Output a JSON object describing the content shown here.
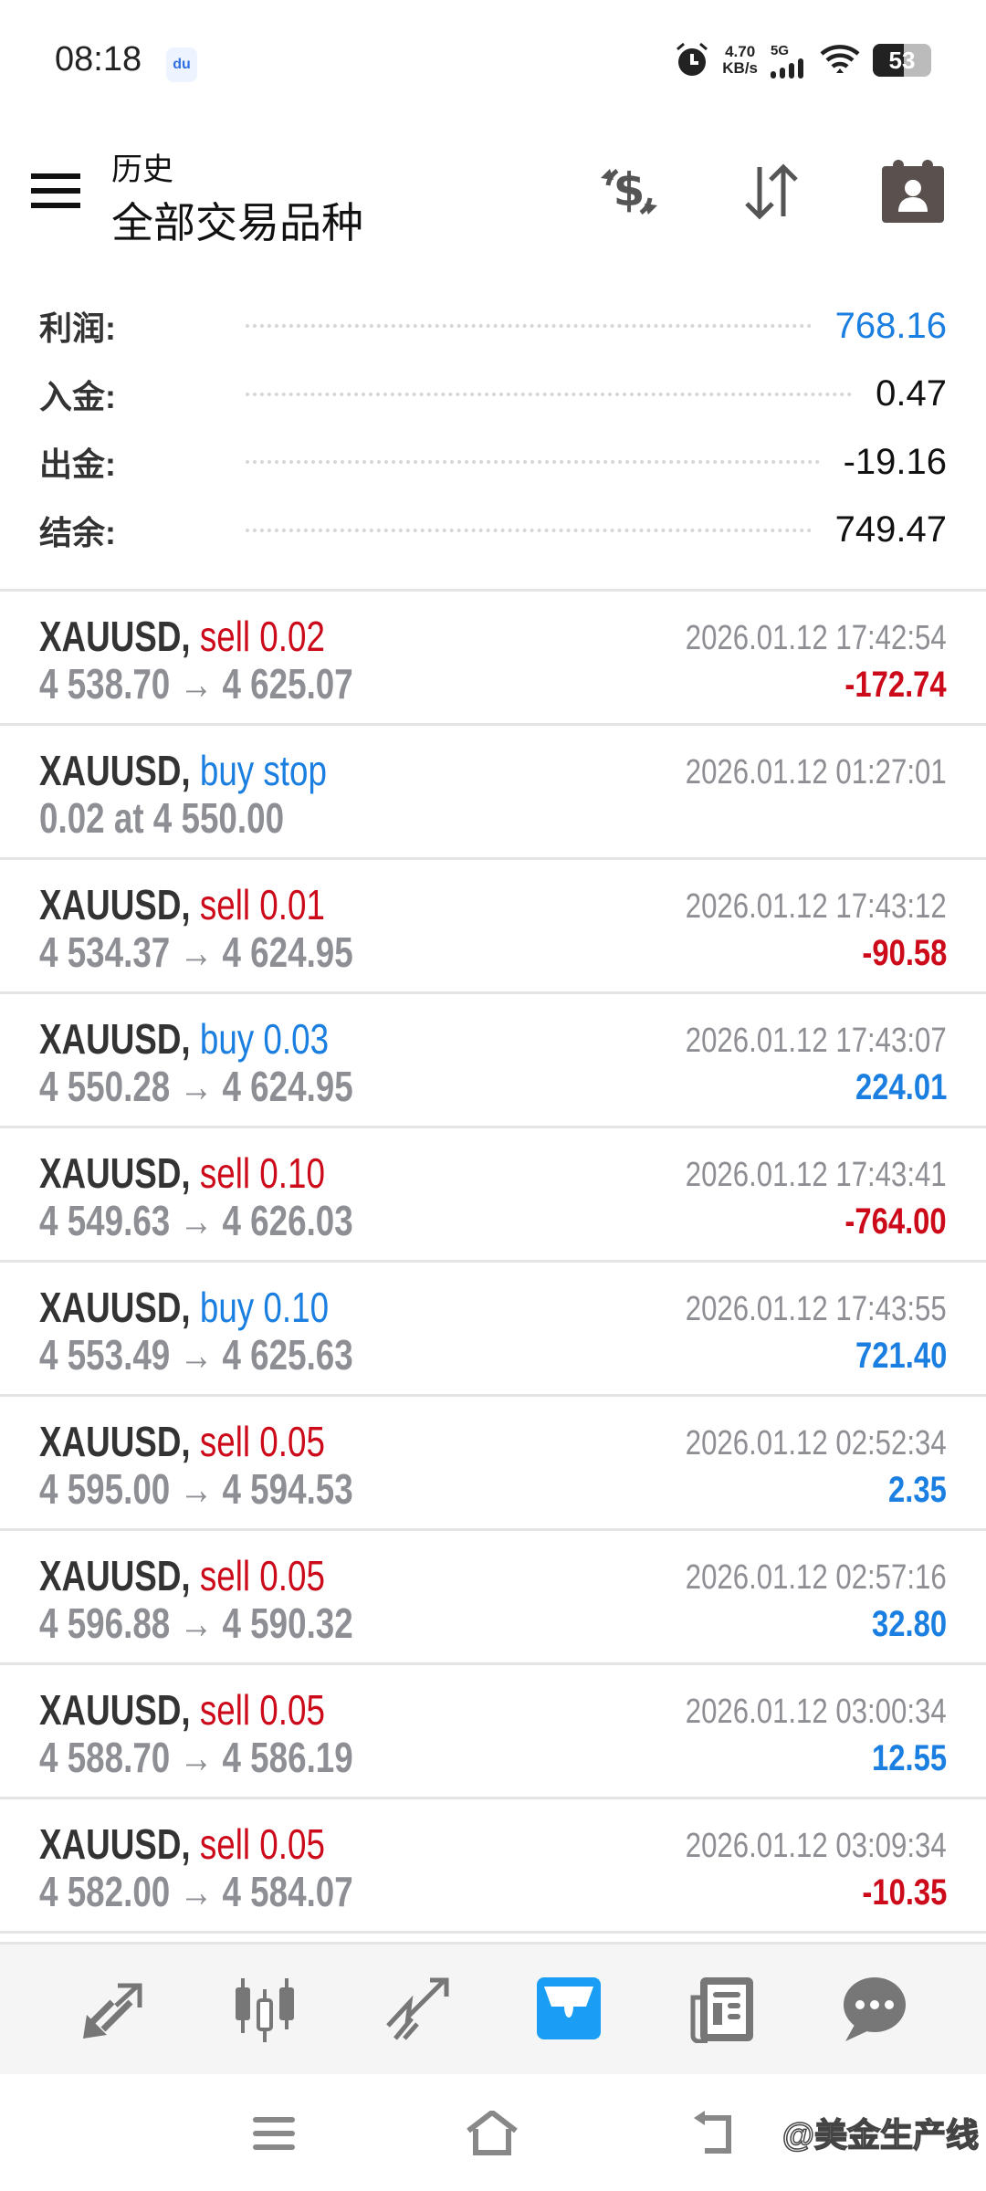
{
  "status_bar": {
    "time": "08:18",
    "app_badge": "du",
    "net_speed": "4.70",
    "net_unit": "KB/s",
    "network": "5G",
    "battery": "53",
    "icons": [
      "baidu-icon",
      "alarm-icon",
      "signal-icon",
      "wifi-icon",
      "battery-icon"
    ]
  },
  "header": {
    "subtitle": "历史",
    "title": "全部交易品种",
    "icons": [
      "menu-icon",
      "currency-exchange-icon",
      "sort-icon",
      "contacts-calendar-icon"
    ]
  },
  "summary": [
    {
      "label": "利润:",
      "value": "768.16",
      "color": "#1a7fe0"
    },
    {
      "label": "入金:",
      "value": "0.47"
    },
    {
      "label": "出金:",
      "value": "-19.16"
    },
    {
      "label": "结余:",
      "value": "749.47"
    }
  ],
  "colors": {
    "sell": "#cc0a1a",
    "buy": "#1a7fe0",
    "accent": "#1a9ef5"
  },
  "trades": [
    {
      "symbol": "XAUUSD,",
      "action": "sell 0.02",
      "side": "sell",
      "prices": "4 538.70 → 4 625.07",
      "time": "2026.01.12 17:42:54",
      "profit": "-172.74"
    },
    {
      "symbol": "XAUUSD,",
      "action": "buy stop",
      "side": "buy",
      "prices": "0.02 at 4 550.00",
      "time": "2026.01.12 01:27:01",
      "profit": ""
    },
    {
      "symbol": "XAUUSD,",
      "action": "sell 0.01",
      "side": "sell",
      "prices": "4 534.37 → 4 624.95",
      "time": "2026.01.12 17:43:12",
      "profit": "-90.58"
    },
    {
      "symbol": "XAUUSD,",
      "action": "buy 0.03",
      "side": "buy",
      "prices": "4 550.28 → 4 624.95",
      "time": "2026.01.12 17:43:07",
      "profit": "224.01"
    },
    {
      "symbol": "XAUUSD,",
      "action": "sell 0.10",
      "side": "sell",
      "prices": "4 549.63 → 4 626.03",
      "time": "2026.01.12 17:43:41",
      "profit": "-764.00"
    },
    {
      "symbol": "XAUUSD,",
      "action": "buy 0.10",
      "side": "buy",
      "prices": "4 553.49 → 4 625.63",
      "time": "2026.01.12 17:43:55",
      "profit": "721.40"
    },
    {
      "symbol": "XAUUSD,",
      "action": "sell 0.05",
      "side": "sell",
      "prices": "4 595.00 → 4 594.53",
      "time": "2026.01.12 02:52:34",
      "profit": "2.35"
    },
    {
      "symbol": "XAUUSD,",
      "action": "sell 0.05",
      "side": "sell",
      "prices": "4 596.88 → 4 590.32",
      "time": "2026.01.12 02:57:16",
      "profit": "32.80"
    },
    {
      "symbol": "XAUUSD,",
      "action": "sell 0.05",
      "side": "sell",
      "prices": "4 588.70 → 4 586.19",
      "time": "2026.01.12 03:00:34",
      "profit": "12.55"
    },
    {
      "symbol": "XAUUSD,",
      "action": "sell 0.05",
      "side": "sell",
      "prices": "4 582.00 → 4 584.07",
      "time": "2026.01.12 03:09:34",
      "profit": "-10.35"
    }
  ],
  "bottom_nav": [
    {
      "icon": "quotes-icon",
      "active": false
    },
    {
      "icon": "chart-icon",
      "active": false
    },
    {
      "icon": "trade-icon",
      "active": false
    },
    {
      "icon": "history-inbox-icon",
      "active": true
    },
    {
      "icon": "news-icon",
      "active": false
    },
    {
      "icon": "chat-icon",
      "active": false
    }
  ],
  "watermark": "@美金生产线"
}
